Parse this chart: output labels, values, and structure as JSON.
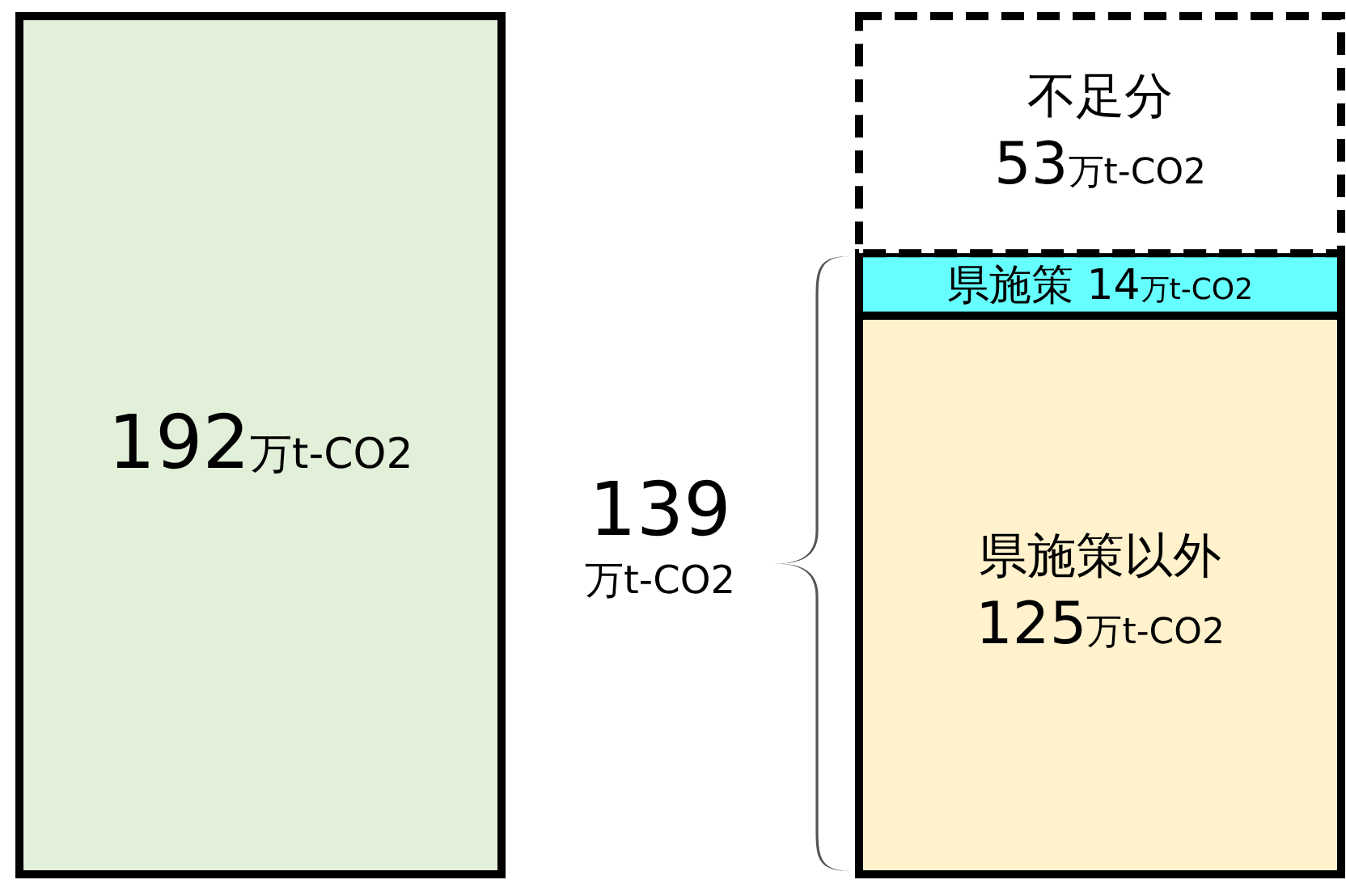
{
  "chart_data": {
    "type": "bar",
    "stacked": true,
    "categories": [
      null,
      null
    ],
    "series": [
      {
        "color": "#e2efd9",
        "values": [
          192,
          0
        ],
        "value_labels": [
          "192万t-CO2",
          null
        ]
      },
      {
        "name": "県施策以外",
        "color": "#fff2cc",
        "values": [
          0,
          125
        ],
        "value_labels": [
          null,
          "125万t-CO2"
        ]
      },
      {
        "name": "県施策",
        "color": "#66ffff",
        "values": [
          0,
          14
        ],
        "value_labels": [
          null,
          "14万t-CO2"
        ]
      },
      {
        "name": "不足分",
        "color": "#ffffff",
        "line_style": "dashed",
        "values": [
          0,
          53
        ],
        "value_labels": [
          null,
          "53万t-CO2"
        ]
      }
    ],
    "annotations": [
      "139万t-CO2"
    ]
  }
}
